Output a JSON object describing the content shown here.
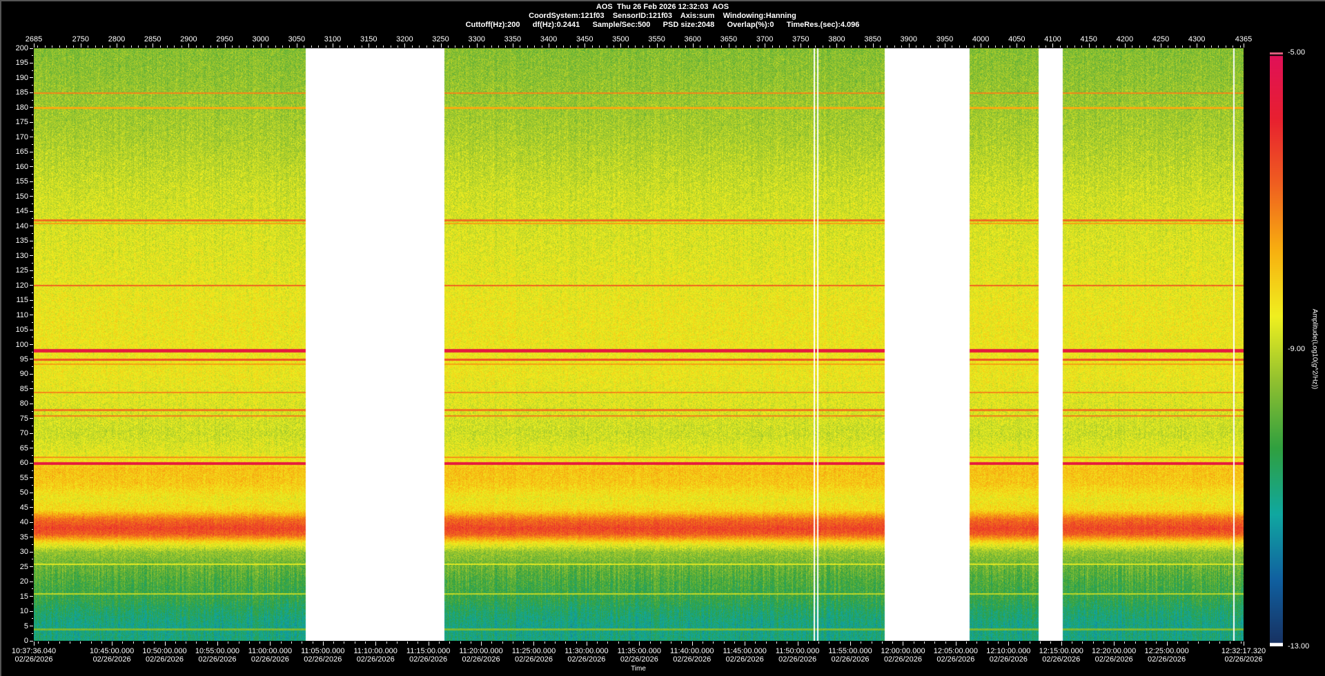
{
  "header": {
    "line1": "AOS  Thu 26 Feb 2026 12:32:03  AOS",
    "line2": "CoordSystem:121f03    SensorID:121f03    Axis:sum    Windowing:Hanning",
    "line3": "Cuttoff(Hz):200      df(Hz):0.2441      Sample/Sec:500      PSD size:2048      Overlap(%):0      TimeRes.(sec):4.096"
  },
  "chart_data": {
    "type": "heatmap",
    "title": "AOS  Thu 26 Feb 2026 12:32:03  AOS",
    "xlabel": "Time",
    "ylabel": "",
    "colorbar_label": "Amplitude(Log10(g^2/Hz))",
    "colorbar_range": [
      -13.0,
      -5.0
    ],
    "colorbar_ticks": [
      "-5.00",
      "-9.00",
      "-13.00"
    ],
    "colorscale": [
      "#183060",
      "#1060a0",
      "#10a8a0",
      "#30a040",
      "#90c030",
      "#f0f020",
      "#f8b010",
      "#f06020",
      "#e82030",
      "#e0105a"
    ],
    "ylim": [
      0,
      200
    ],
    "y_ticks": [
      0,
      5,
      10,
      15,
      20,
      25,
      30,
      35,
      40,
      45,
      50,
      55,
      60,
      65,
      70,
      75,
      80,
      85,
      90,
      95,
      100,
      105,
      110,
      115,
      120,
      125,
      130,
      135,
      140,
      145,
      150,
      155,
      160,
      165,
      170,
      175,
      180,
      185,
      190,
      195,
      200
    ],
    "top_axis_range": [
      2685,
      4365
    ],
    "top_axis_ticks": [
      2685,
      2750,
      2800,
      2850,
      2900,
      2950,
      3000,
      3050,
      3100,
      3150,
      3200,
      3250,
      3300,
      3350,
      3400,
      3450,
      3500,
      3550,
      3600,
      3650,
      3700,
      3750,
      3800,
      3850,
      3900,
      3950,
      4000,
      4050,
      4100,
      4150,
      4200,
      4250,
      4300,
      4365
    ],
    "time_range": [
      "10:37:36.040",
      "12:32:17.320"
    ],
    "time_ticks": [
      {
        "time": "10:37:36.040",
        "date": "02/26/2026"
      },
      {
        "time": "10:45:00.000",
        "date": "02/26/2026"
      },
      {
        "time": "10:50:00.000",
        "date": "02/26/2026"
      },
      {
        "time": "10:55:00.000",
        "date": "02/26/2026"
      },
      {
        "time": "11:00:00.000",
        "date": "02/26/2026"
      },
      {
        "time": "11:05:00.000",
        "date": "02/26/2026"
      },
      {
        "time": "11:10:00.000",
        "date": "02/26/2026"
      },
      {
        "time": "11:15:00.000",
        "date": "02/26/2026"
      },
      {
        "time": "11:20:00.000",
        "date": "02/26/2026"
      },
      {
        "time": "11:25:00.000",
        "date": "02/26/2026"
      },
      {
        "time": "11:30:00.000",
        "date": "02/26/2026"
      },
      {
        "time": "11:35:00.000",
        "date": "02/26/2026"
      },
      {
        "time": "11:40:00.000",
        "date": "02/26/2026"
      },
      {
        "time": "11:45:00.000",
        "date": "02/26/2026"
      },
      {
        "time": "11:50:00.000",
        "date": "02/26/2026"
      },
      {
        "time": "11:55:00.000",
        "date": "02/26/2026"
      },
      {
        "time": "12:00:00.000",
        "date": "02/26/2026"
      },
      {
        "time": "12:05:00.000",
        "date": "02/26/2026"
      },
      {
        "time": "12:10:00.000",
        "date": "02/26/2026"
      },
      {
        "time": "12:15:00.000",
        "date": "02/26/2026"
      },
      {
        "time": "12:20:00.000",
        "date": "02/26/2026"
      },
      {
        "time": "12:25:00.000",
        "date": "02/26/2026"
      },
      {
        "time": "12:32:17.320",
        "date": "02/26/2026"
      }
    ],
    "data_gaps": [
      [
        3062,
        3255
      ],
      [
        3767,
        3769
      ],
      [
        3772,
        3774
      ],
      [
        3866,
        3984
      ],
      [
        4080,
        4113
      ],
      [
        4350,
        4352
      ]
    ],
    "spectrum_profile": {
      "freq_hz": [
        0,
        5,
        10,
        15,
        20,
        25,
        30,
        33,
        36,
        38,
        41,
        44,
        48,
        53,
        58,
        62,
        70,
        90,
        110,
        130,
        150,
        170,
        190,
        200
      ],
      "amplitude": [
        -10.9,
        -11.0,
        -10.7,
        -10.3,
        -10.1,
        -9.8,
        -9.4,
        -8.4,
        -6.7,
        -6.4,
        -6.9,
        -8.2,
        -8.5,
        -8.0,
        -7.9,
        -8.6,
        -8.9,
        -8.5,
        -8.5,
        -8.7,
        -8.85,
        -9.2,
        -9.45,
        -9.55
      ]
    },
    "tonal_lines": [
      {
        "freq_hz": 185,
        "amplitude": -7.2
      },
      {
        "freq_hz": 180,
        "amplitude": -7.6
      },
      {
        "freq_hz": 142,
        "amplitude": -6.9
      },
      {
        "freq_hz": 141,
        "amplitude": -7.5
      },
      {
        "freq_hz": 120,
        "amplitude": -6.8
      },
      {
        "freq_hz": 98,
        "amplitude": -5.6
      },
      {
        "freq_hz": 95,
        "amplitude": -6.6
      },
      {
        "freq_hz": 93.5,
        "amplitude": -7.5
      },
      {
        "freq_hz": 84,
        "amplitude": -7.2
      },
      {
        "freq_hz": 78,
        "amplitude": -7.0
      },
      {
        "freq_hz": 76,
        "amplitude": -7.1
      },
      {
        "freq_hz": 62,
        "amplitude": -7.3
      },
      {
        "freq_hz": 60,
        "amplitude": -5.6
      },
      {
        "freq_hz": 26,
        "amplitude": -8.7
      },
      {
        "freq_hz": 16,
        "amplitude": -9.0
      },
      {
        "freq_hz": 4,
        "amplitude": -9.6
      }
    ]
  }
}
